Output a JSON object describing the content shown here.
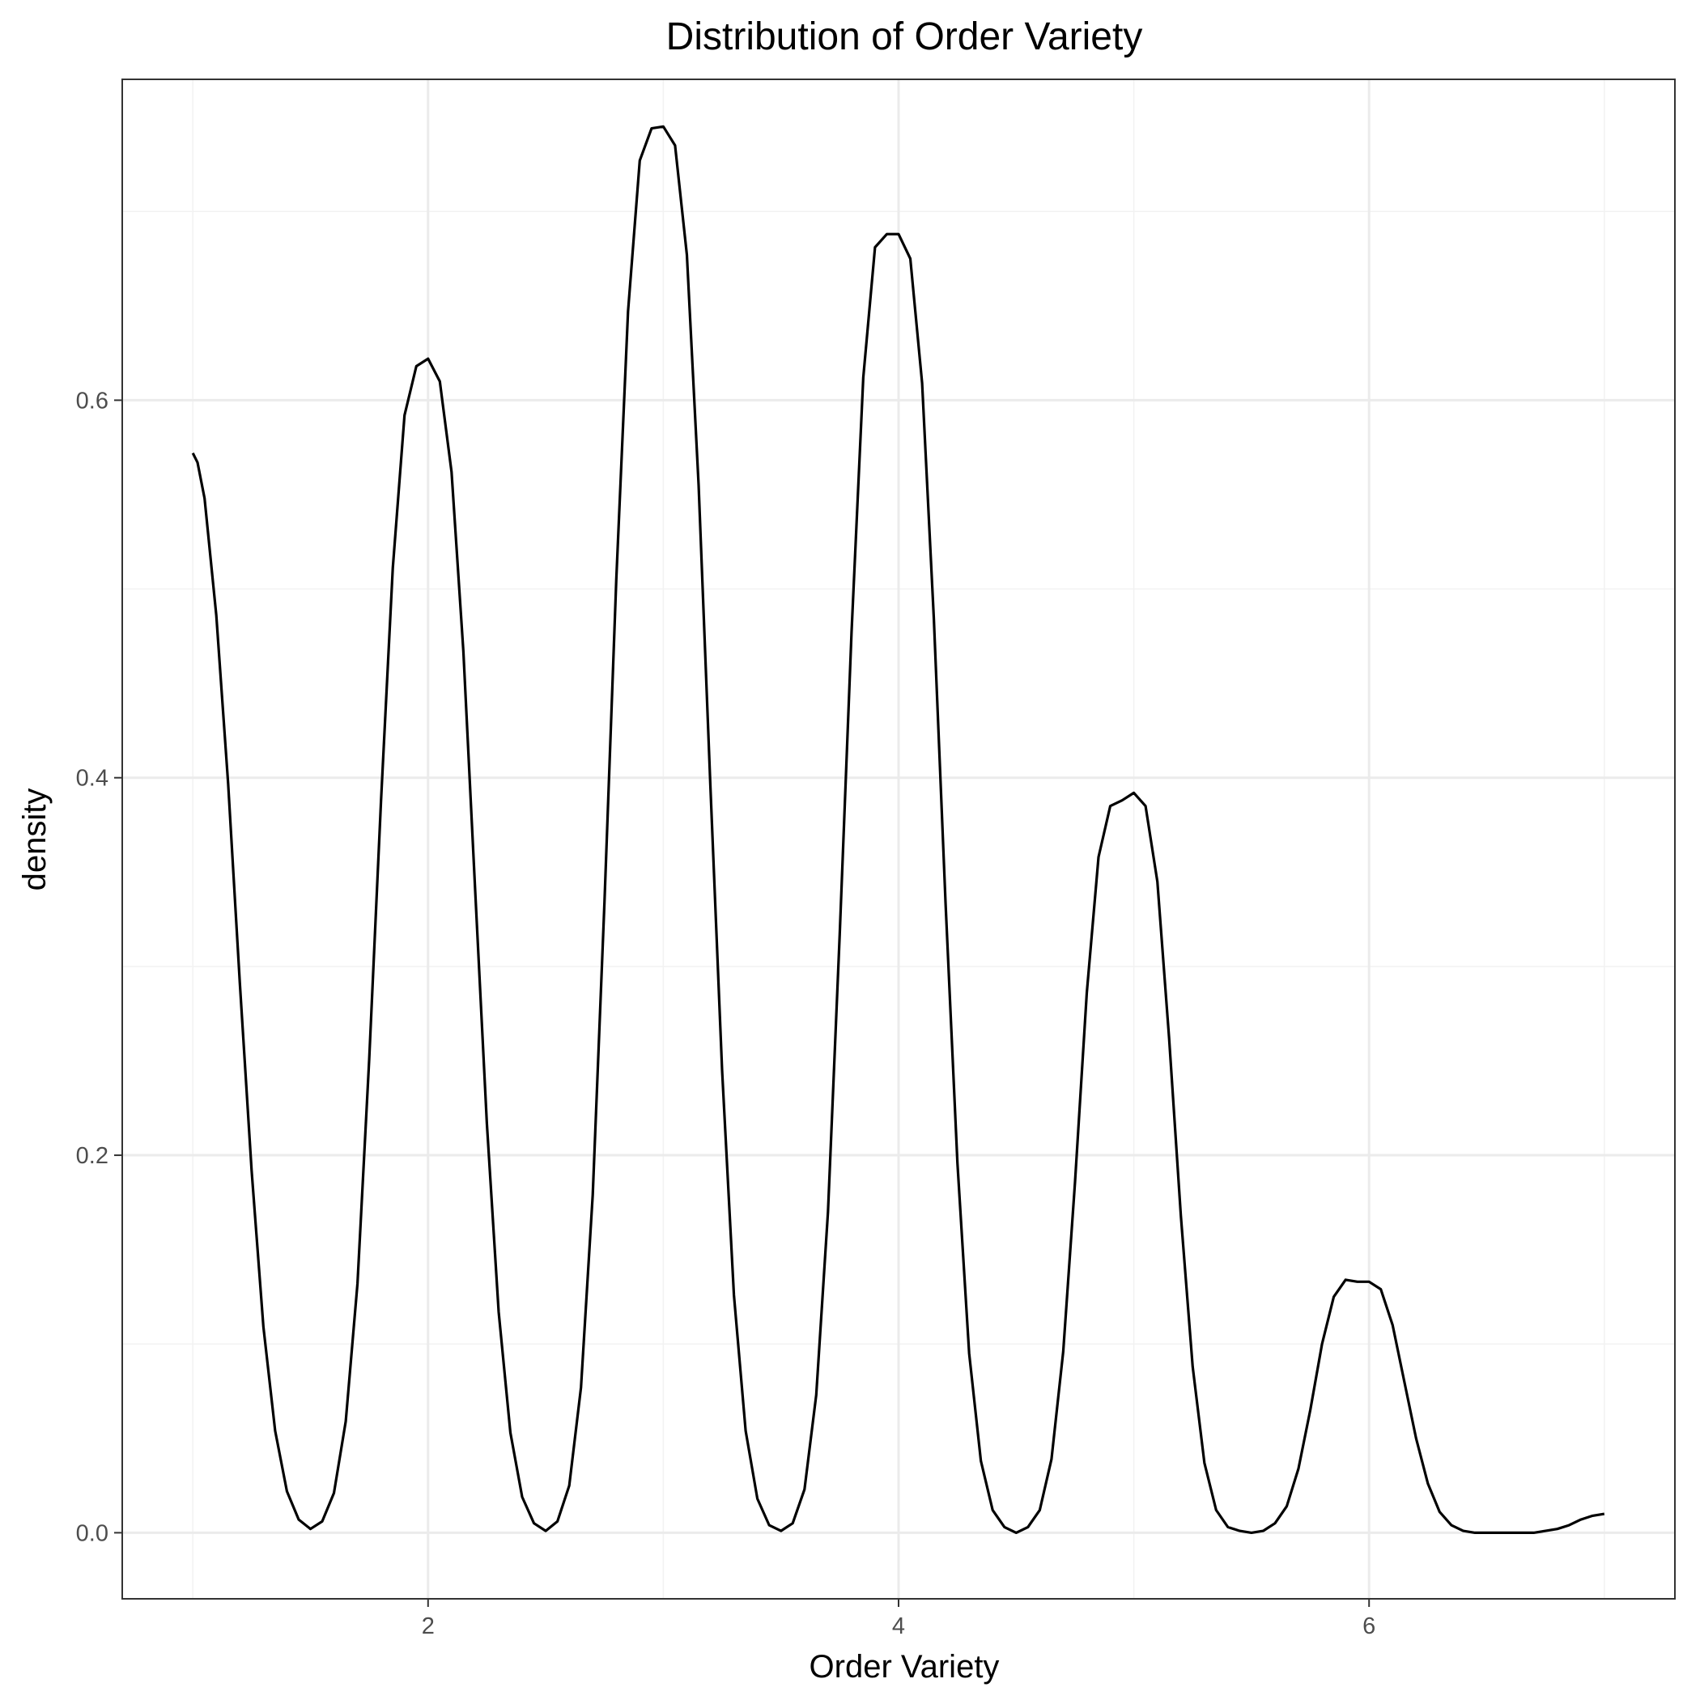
{
  "chart_data": {
    "type": "line",
    "title": "Distribution of Order Variety",
    "xlabel": "Order Variety",
    "ylabel": "density",
    "xlim": [
      0.7,
      7.3
    ],
    "ylim": [
      -0.035,
      0.77
    ],
    "x_ticks": [
      2,
      4,
      6
    ],
    "y_ticks": [
      0.0,
      0.2,
      0.4,
      0.6
    ],
    "x_tick_labels": [
      "2",
      "4",
      "6"
    ],
    "y_tick_labels": [
      "0.0",
      "0.2",
      "0.4",
      "0.6"
    ],
    "x_minor_ticks": [
      1,
      3,
      5,
      7
    ],
    "y_minor_ticks": [
      0.1,
      0.3,
      0.5,
      0.7
    ],
    "grid": true,
    "series": [
      {
        "color": "#000000",
        "x": [
          1.0,
          1.02,
          1.05,
          1.1,
          1.15,
          1.2,
          1.25,
          1.3,
          1.35,
          1.4,
          1.45,
          1.5,
          1.55,
          1.6,
          1.65,
          1.7,
          1.75,
          1.8,
          1.85,
          1.9,
          1.95,
          2.0,
          2.05,
          2.1,
          2.15,
          2.2,
          2.25,
          2.3,
          2.35,
          2.4,
          2.45,
          2.5,
          2.55,
          2.6,
          2.65,
          2.7,
          2.75,
          2.8,
          2.85,
          2.9,
          2.95,
          3.0,
          3.05,
          3.1,
          3.15,
          3.2,
          3.25,
          3.3,
          3.35,
          3.4,
          3.45,
          3.5,
          3.55,
          3.6,
          3.65,
          3.7,
          3.75,
          3.8,
          3.85,
          3.9,
          3.95,
          4.0,
          4.05,
          4.1,
          4.15,
          4.2,
          4.25,
          4.3,
          4.35,
          4.4,
          4.45,
          4.5,
          4.55,
          4.6,
          4.65,
          4.7,
          4.75,
          4.8,
          4.85,
          4.9,
          4.95,
          5.0,
          5.05,
          5.1,
          5.15,
          5.2,
          5.25,
          5.3,
          5.35,
          5.4,
          5.45,
          5.5,
          5.55,
          5.6,
          5.65,
          5.7,
          5.75,
          5.8,
          5.85,
          5.9,
          5.95,
          6.0,
          6.05,
          6.1,
          6.15,
          6.2,
          6.25,
          6.3,
          6.35,
          6.4,
          6.45,
          6.5,
          6.55,
          6.6,
          6.65,
          6.7,
          6.75,
          6.8,
          6.85,
          6.9,
          6.95,
          7.0
        ],
        "values": [
          0.572,
          0.567,
          0.548,
          0.486,
          0.397,
          0.291,
          0.192,
          0.109,
          0.054,
          0.022,
          0.007,
          0.002,
          0.006,
          0.021,
          0.059,
          0.132,
          0.251,
          0.388,
          0.511,
          0.592,
          0.618,
          0.622,
          0.61,
          0.562,
          0.467,
          0.341,
          0.217,
          0.117,
          0.053,
          0.019,
          0.005,
          0.001,
          0.006,
          0.025,
          0.077,
          0.179,
          0.334,
          0.505,
          0.647,
          0.727,
          0.744,
          0.745,
          0.735,
          0.677,
          0.555,
          0.396,
          0.245,
          0.126,
          0.054,
          0.018,
          0.004,
          0.001,
          0.005,
          0.023,
          0.073,
          0.17,
          0.317,
          0.477,
          0.612,
          0.681,
          0.688,
          0.688,
          0.675,
          0.609,
          0.484,
          0.333,
          0.196,
          0.095,
          0.038,
          0.012,
          0.003,
          0.0,
          0.003,
          0.012,
          0.039,
          0.096,
          0.186,
          0.286,
          0.358,
          0.385,
          0.388,
          0.392,
          0.385,
          0.345,
          0.262,
          0.168,
          0.088,
          0.037,
          0.012,
          0.003,
          0.001,
          0.0,
          0.001,
          0.005,
          0.014,
          0.034,
          0.065,
          0.1,
          0.125,
          0.134,
          0.133,
          0.133,
          0.129,
          0.11,
          0.08,
          0.05,
          0.026,
          0.011,
          0.004,
          0.001,
          0.0,
          0.0,
          0.0,
          0.0,
          0.0,
          0.0,
          0.001,
          0.002,
          0.004,
          0.007,
          0.009,
          0.01
        ]
      }
    ]
  }
}
